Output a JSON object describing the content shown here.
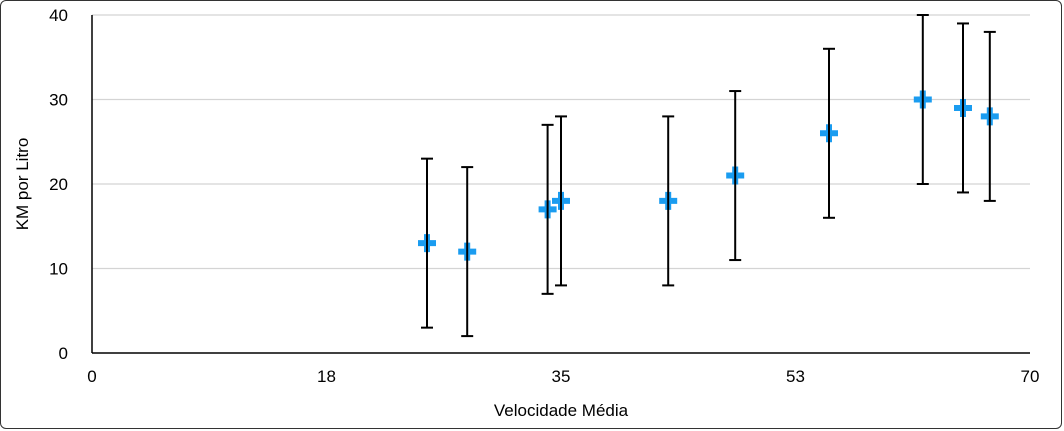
{
  "chart_data": {
    "type": "scatter",
    "title": "",
    "xlabel": "Velocidade Média",
    "ylabel": "KM por Litro",
    "xlim": [
      0,
      70
    ],
    "ylim": [
      0,
      40
    ],
    "x_ticks": [
      0,
      17.5,
      35,
      52.5,
      70
    ],
    "x_tick_labels": [
      "0",
      "18",
      "35",
      "53",
      "70"
    ],
    "y_ticks": [
      0,
      10,
      20,
      30,
      40
    ],
    "y_tick_labels": [
      "0",
      "10",
      "20",
      "30",
      "40"
    ],
    "grid": "horizontal",
    "marker": "plus",
    "marker_color": "#1a9cf0",
    "error_bar_color": "#000000",
    "points": [
      {
        "x": 25,
        "y": 13,
        "err_low": 10,
        "err_high": 10
      },
      {
        "x": 28,
        "y": 12,
        "err_low": 10,
        "err_high": 10
      },
      {
        "x": 34,
        "y": 17,
        "err_low": 10,
        "err_high": 10
      },
      {
        "x": 35,
        "y": 18,
        "err_low": 10,
        "err_high": 10
      },
      {
        "x": 43,
        "y": 18,
        "err_low": 10,
        "err_high": 10
      },
      {
        "x": 48,
        "y": 21,
        "err_low": 10,
        "err_high": 10
      },
      {
        "x": 55,
        "y": 26,
        "err_low": 10,
        "err_high": 10
      },
      {
        "x": 62,
        "y": 30,
        "err_low": 10,
        "err_high": 10
      },
      {
        "x": 65,
        "y": 29,
        "err_low": 10,
        "err_high": 10
      },
      {
        "x": 67,
        "y": 28,
        "err_low": 10,
        "err_high": 10
      }
    ]
  }
}
